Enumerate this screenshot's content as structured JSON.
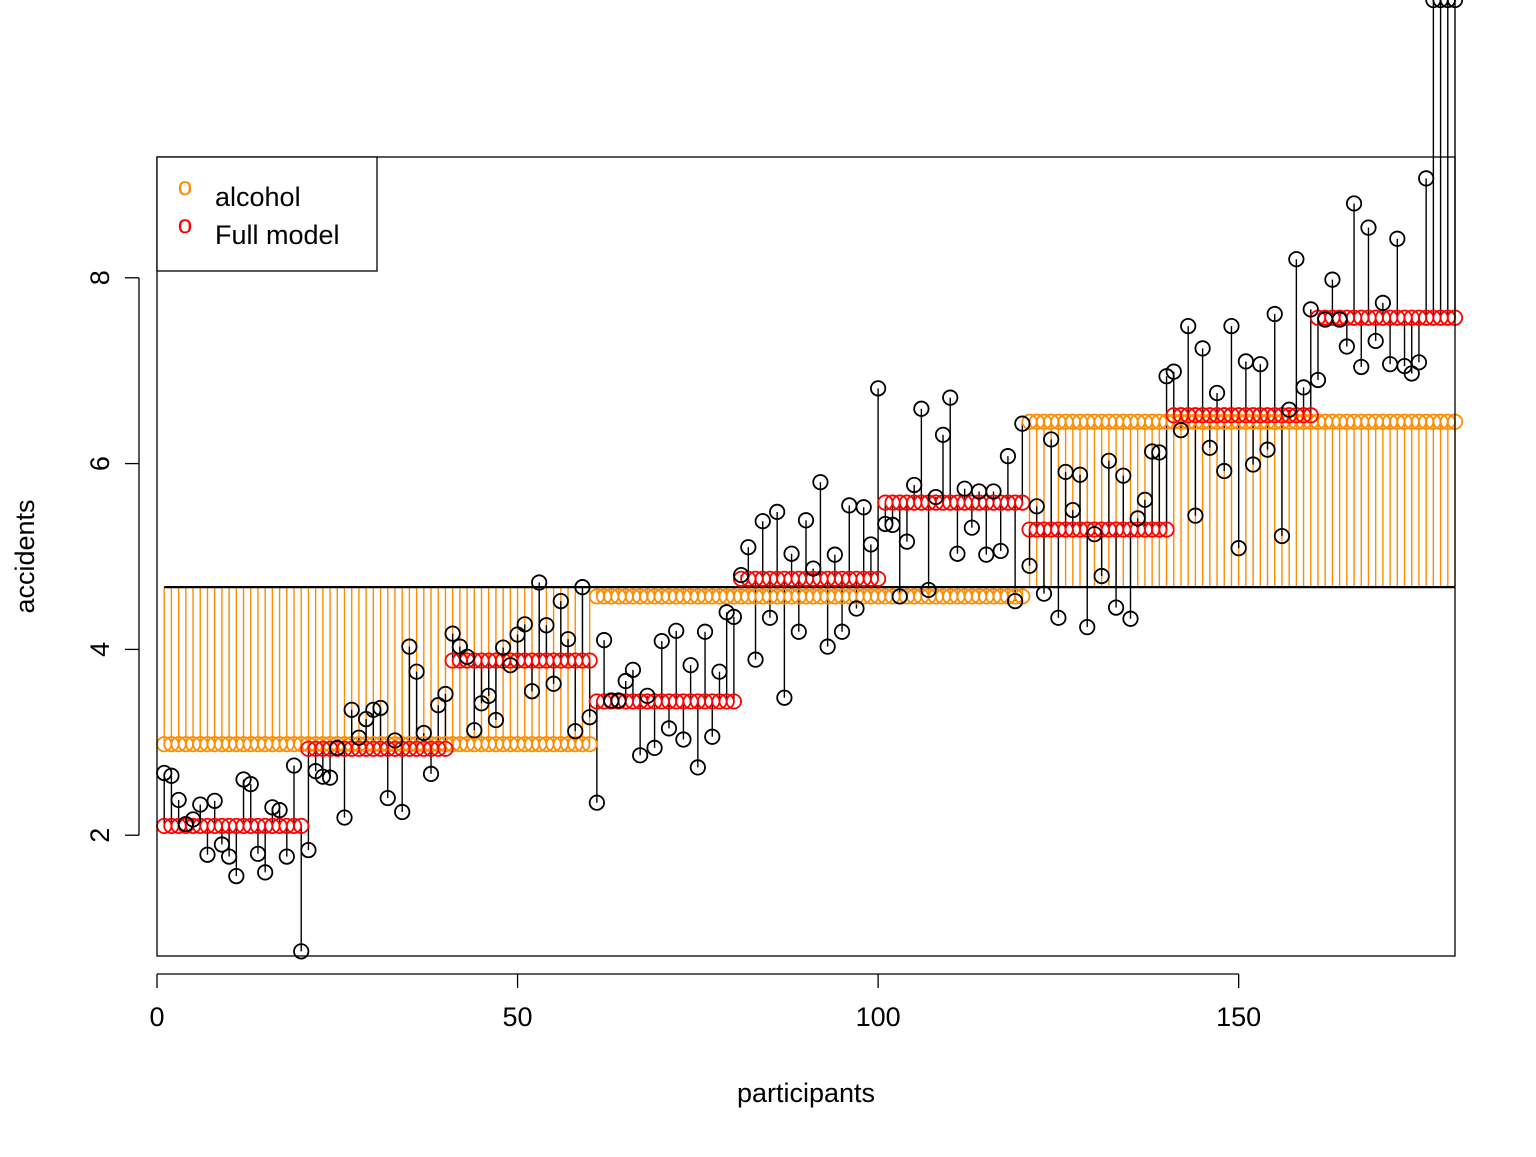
{
  "chart_data": {
    "type": "scatter",
    "title": "",
    "xlabel": "participants",
    "ylabel": "accidents",
    "xlim": [
      0,
      180
    ],
    "ylim": [
      0.7,
      9.3
    ],
    "xticks": [
      0,
      50,
      100,
      150
    ],
    "yticks": [
      2,
      4,
      6,
      8
    ],
    "grid": false,
    "legend_position": "top-left",
    "grand_mean": 4.67,
    "colors": {
      "observed": "#000000",
      "alcohol": "#FF8C00",
      "full_model": "#FF0000",
      "grand_mean_line": "#000000"
    },
    "legend": [
      {
        "symbol": "o",
        "label": "alcohol",
        "color": "#FF8C00"
      },
      {
        "symbol": "o",
        "label": "Full model",
        "color": "#FF0000"
      }
    ],
    "x": [
      1,
      2,
      3,
      4,
      5,
      6,
      7,
      8,
      9,
      10,
      11,
      12,
      13,
      14,
      15,
      16,
      17,
      18,
      19,
      20,
      21,
      22,
      23,
      24,
      25,
      26,
      27,
      28,
      29,
      30,
      31,
      32,
      33,
      34,
      35,
      36,
      37,
      38,
      39,
      40,
      41,
      42,
      43,
      44,
      45,
      46,
      47,
      48,
      49,
      50,
      51,
      52,
      53,
      54,
      55,
      56,
      57,
      58,
      59,
      60,
      61,
      62,
      63,
      64,
      65,
      66,
      67,
      68,
      69,
      70,
      71,
      72,
      73,
      74,
      75,
      76,
      77,
      78,
      79,
      80,
      81,
      82,
      83,
      84,
      85,
      86,
      87,
      88,
      89,
      90,
      91,
      92,
      93,
      94,
      95,
      96,
      97,
      98,
      99,
      100,
      101,
      102,
      103,
      104,
      105,
      106,
      107,
      108,
      109,
      110,
      111,
      112,
      113,
      114,
      115,
      116,
      117,
      118,
      119,
      120,
      121,
      122,
      123,
      124,
      125,
      126,
      127,
      128,
      129,
      130,
      131,
      132,
      133,
      134,
      135,
      136,
      137,
      138,
      139,
      140,
      141,
      142,
      143,
      144,
      145,
      146,
      147,
      148,
      149,
      150,
      151,
      152,
      153,
      154,
      155,
      156,
      157,
      158,
      159,
      160,
      161,
      162,
      163,
      164,
      165,
      166,
      167,
      168,
      169,
      170,
      171,
      172,
      173,
      174,
      175,
      176,
      177,
      178,
      179,
      180
    ],
    "series": [
      {
        "name": "accidents",
        "values": [
          2.67,
          2.64,
          2.38,
          2.12,
          2.17,
          2.33,
          1.79,
          2.37,
          1.9,
          1.77,
          1.56,
          2.6,
          2.55,
          1.8,
          1.6,
          2.3,
          2.27,
          1.77,
          2.75,
          0.75,
          1.84,
          2.69,
          2.63,
          2.62,
          2.94,
          2.19,
          3.35,
          3.05,
          3.25,
          3.35,
          3.37,
          2.4,
          3.02,
          2.25,
          4.03,
          3.76,
          3.1,
          2.66,
          3.4,
          3.52,
          4.17,
          4.03,
          3.92,
          3.13,
          3.42,
          3.5,
          3.24,
          4.02,
          3.83,
          4.16,
          4.27,
          3.55,
          4.72,
          4.26,
          3.63,
          4.52,
          4.11,
          3.12,
          4.67,
          3.27,
          2.35,
          4.1,
          3.45,
          3.45,
          3.66,
          3.78,
          2.86,
          3.5,
          2.94,
          4.09,
          3.15,
          4.2,
          3.03,
          3.83,
          2.73,
          4.19,
          3.06,
          3.76,
          4.4,
          4.35,
          4.8,
          5.1,
          3.89,
          5.38,
          4.34,
          5.48,
          3.48,
          5.03,
          4.19,
          5.39,
          4.87,
          5.8,
          4.03,
          5.02,
          4.19,
          5.55,
          4.44,
          5.53,
          5.13,
          6.81,
          5.35,
          5.34,
          4.57,
          5.16,
          5.77,
          6.59,
          4.64,
          5.64,
          6.31,
          6.71,
          5.03,
          5.73,
          5.31,
          5.7,
          5.02,
          5.7,
          5.06,
          6.08,
          4.52,
          6.43,
          4.9,
          5.54,
          4.6,
          6.26,
          4.34,
          5.91,
          5.5,
          5.88,
          4.24,
          5.24,
          4.79,
          6.03,
          4.45,
          5.87,
          4.33,
          5.41,
          5.61,
          6.13,
          6.12,
          6.94,
          6.99,
          6.36,
          7.48,
          5.44,
          7.24,
          6.17,
          6.76,
          5.92,
          7.48,
          5.09,
          7.1,
          5.99,
          7.07,
          6.15,
          7.61,
          5.22,
          6.58,
          8.2,
          6.82,
          7.66,
          6.9,
          7.55,
          7.98,
          7.55,
          7.26,
          8.8,
          7.04,
          8.54,
          7.32,
          7.73,
          7.07,
          8.42,
          7.05,
          6.97,
          7.09,
          9.07
        ]
      },
      {
        "name": "alcohol",
        "levels": [
          {
            "from": 1,
            "to": 60,
            "value": 2.98
          },
          {
            "from": 61,
            "to": 120,
            "value": 4.57
          },
          {
            "from": 121,
            "to": 180,
            "value": 6.45
          }
        ]
      },
      {
        "name": "Full model",
        "levels": [
          {
            "from": 1,
            "to": 20,
            "value": 2.1
          },
          {
            "from": 21,
            "to": 40,
            "value": 2.93
          },
          {
            "from": 41,
            "to": 60,
            "value": 3.88
          },
          {
            "from": 61,
            "to": 80,
            "value": 3.44
          },
          {
            "from": 81,
            "to": 100,
            "value": 4.76
          },
          {
            "from": 101,
            "to": 120,
            "value": 5.58
          },
          {
            "from": 121,
            "to": 140,
            "value": 5.29
          },
          {
            "from": 141,
            "to": 160,
            "value": 6.52
          },
          {
            "from": 161,
            "to": 180,
            "value": 7.57
          }
        ]
      }
    ]
  }
}
